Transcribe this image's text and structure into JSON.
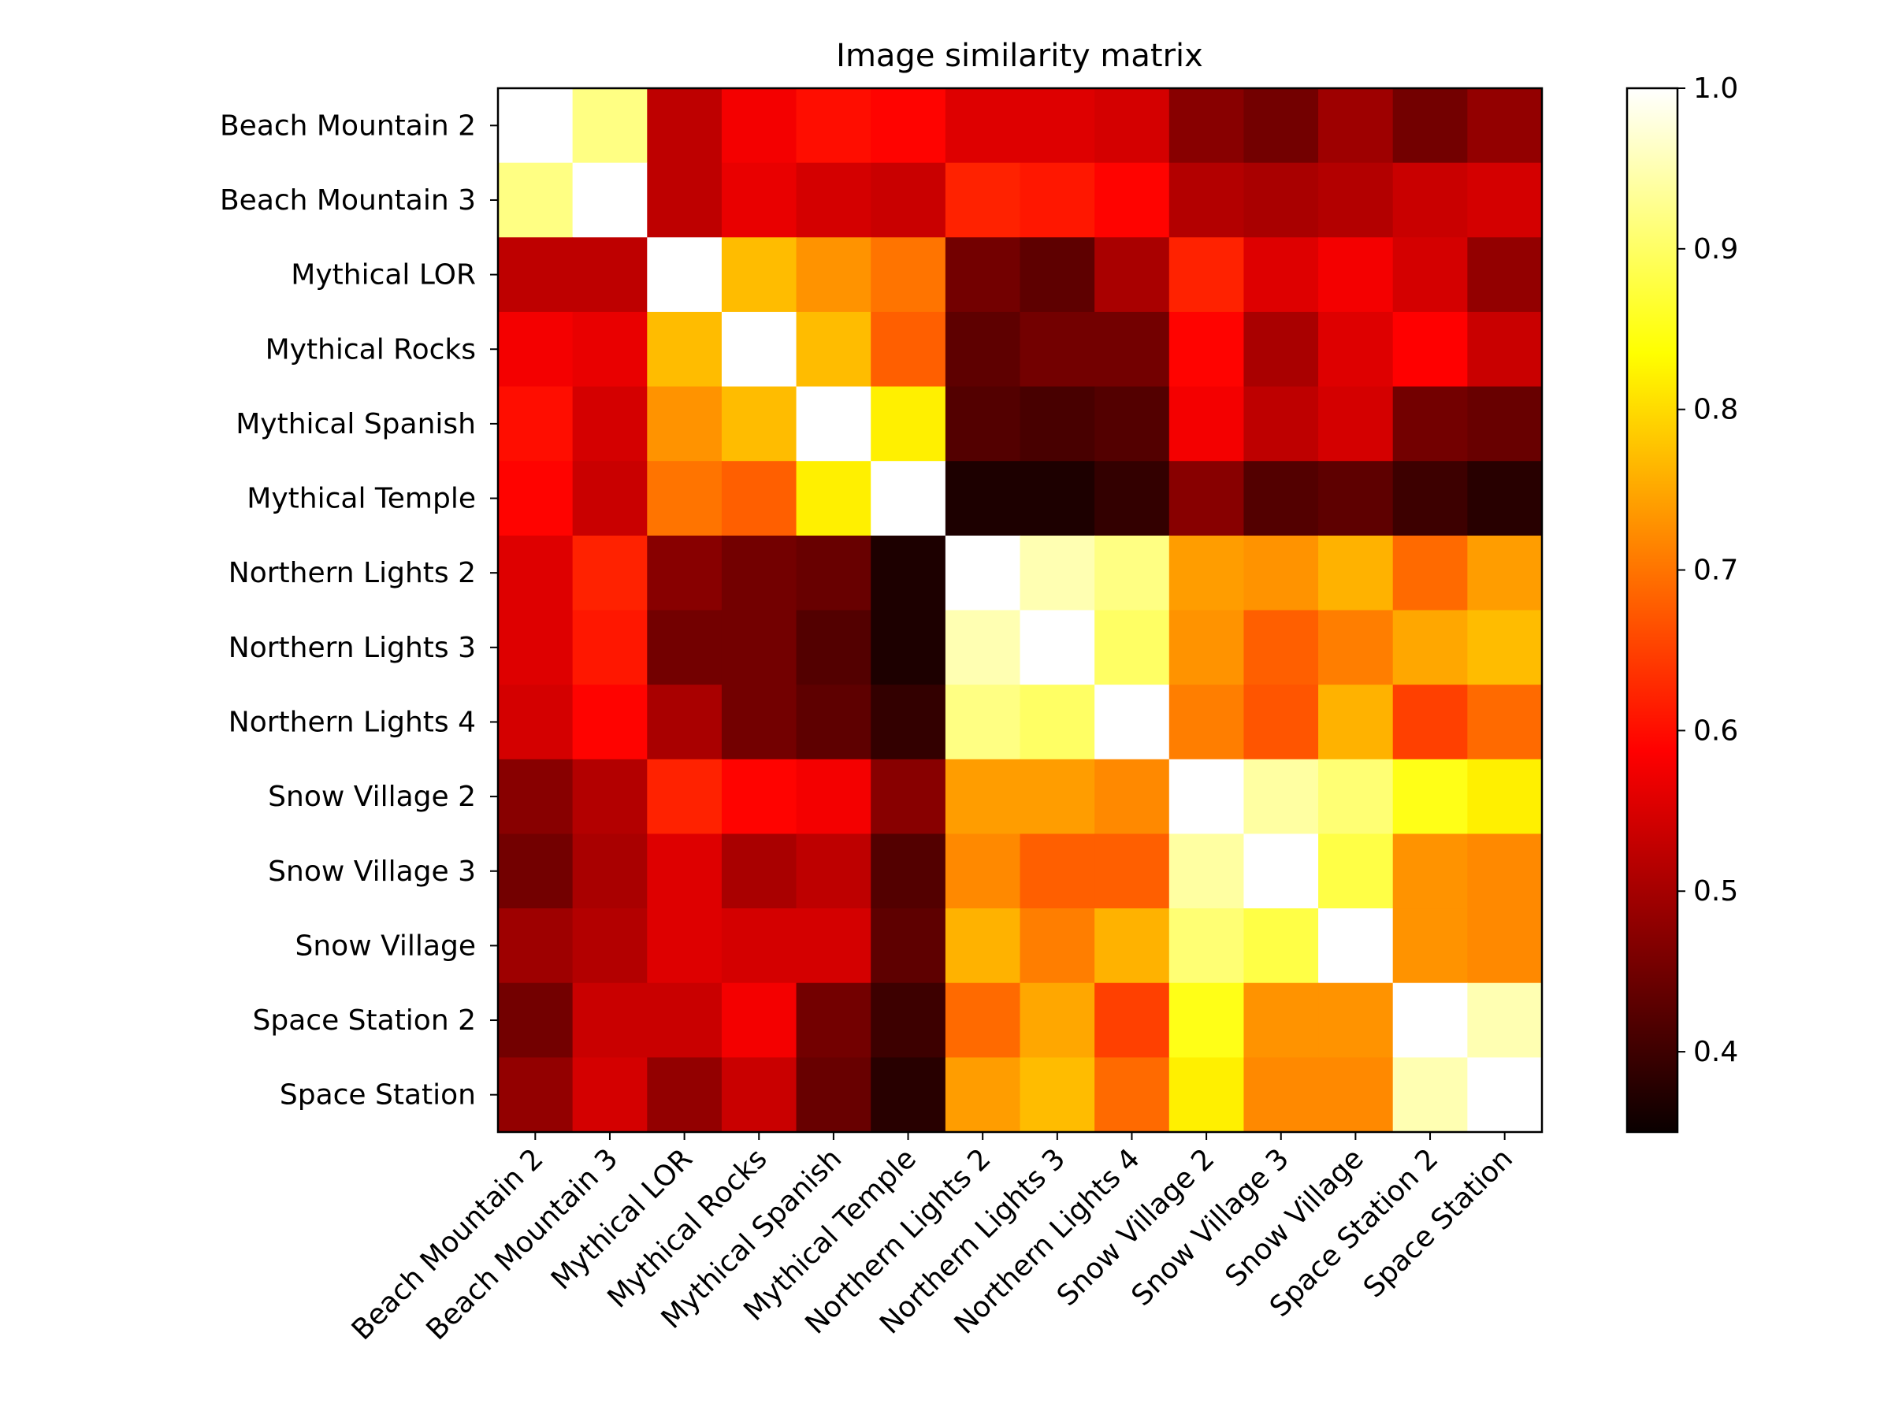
{
  "chart_data": {
    "type": "heatmap",
    "title": "Image similarity matrix",
    "xlabel": "",
    "ylabel": "",
    "colormap": "hot",
    "vmin": 0.35,
    "vmax": 1.0,
    "categories": [
      "Beach Mountain 2",
      "Beach Mountain 3",
      "Mythical LOR",
      "Mythical Rocks",
      "Mythical Spanish",
      "Mythical Temple",
      "Northern Lights 2",
      "Northern Lights 3",
      "Northern Lights 4",
      "Snow Village 2",
      "Snow Village 3",
      "Snow Village",
      "Space Station 2",
      "Space Station"
    ],
    "values": [
      [
        1.0,
        0.92,
        0.5,
        0.55,
        0.6,
        0.59,
        0.53,
        0.53,
        0.52,
        0.45,
        0.43,
        0.47,
        0.43,
        0.46
      ],
      [
        0.92,
        1.0,
        0.5,
        0.54,
        0.52,
        0.51,
        0.62,
        0.61,
        0.59,
        0.49,
        0.48,
        0.49,
        0.51,
        0.52
      ],
      [
        0.5,
        0.5,
        1.0,
        0.77,
        0.73,
        0.7,
        0.43,
        0.41,
        0.48,
        0.62,
        0.53,
        0.55,
        0.52,
        0.46
      ],
      [
        0.55,
        0.54,
        0.77,
        1.0,
        0.77,
        0.68,
        0.41,
        0.43,
        0.43,
        0.59,
        0.48,
        0.53,
        0.56,
        0.51
      ],
      [
        0.6,
        0.52,
        0.73,
        0.77,
        1.0,
        0.82,
        0.4,
        0.39,
        0.4,
        0.55,
        0.5,
        0.52,
        0.43,
        0.42
      ],
      [
        0.59,
        0.51,
        0.7,
        0.68,
        0.82,
        1.0,
        0.35,
        0.35,
        0.37,
        0.45,
        0.4,
        0.41,
        0.38,
        0.36
      ],
      [
        0.53,
        0.62,
        0.45,
        0.43,
        0.42,
        0.35,
        1.0,
        0.95,
        0.92,
        0.74,
        0.73,
        0.76,
        0.69,
        0.74
      ],
      [
        0.53,
        0.61,
        0.43,
        0.43,
        0.4,
        0.35,
        0.95,
        1.0,
        0.9,
        0.73,
        0.68,
        0.71,
        0.75,
        0.77
      ],
      [
        0.52,
        0.59,
        0.48,
        0.43,
        0.41,
        0.37,
        0.92,
        0.9,
        1.0,
        0.71,
        0.67,
        0.76,
        0.65,
        0.69
      ],
      [
        0.45,
        0.49,
        0.62,
        0.59,
        0.55,
        0.45,
        0.74,
        0.74,
        0.72,
        1.0,
        0.94,
        0.91,
        0.85,
        0.82
      ],
      [
        0.43,
        0.48,
        0.53,
        0.48,
        0.5,
        0.4,
        0.72,
        0.68,
        0.68,
        0.94,
        1.0,
        0.88,
        0.73,
        0.72
      ],
      [
        0.47,
        0.49,
        0.53,
        0.52,
        0.52,
        0.41,
        0.76,
        0.71,
        0.76,
        0.91,
        0.88,
        1.0,
        0.73,
        0.72
      ],
      [
        0.43,
        0.51,
        0.51,
        0.55,
        0.43,
        0.38,
        0.69,
        0.75,
        0.65,
        0.85,
        0.73,
        0.73,
        1.0,
        0.95
      ],
      [
        0.46,
        0.52,
        0.46,
        0.51,
        0.42,
        0.36,
        0.74,
        0.77,
        0.69,
        0.82,
        0.72,
        0.72,
        0.95,
        1.0
      ]
    ],
    "colorbar": {
      "ticks": [
        0.4,
        0.5,
        0.6,
        0.7,
        0.8,
        0.9,
        1.0
      ],
      "tick_labels": [
        "0.4",
        "0.5",
        "0.6",
        "0.7",
        "0.8",
        "0.9",
        "1.0"
      ]
    },
    "grid": false,
    "legend": "colorbar-right"
  }
}
